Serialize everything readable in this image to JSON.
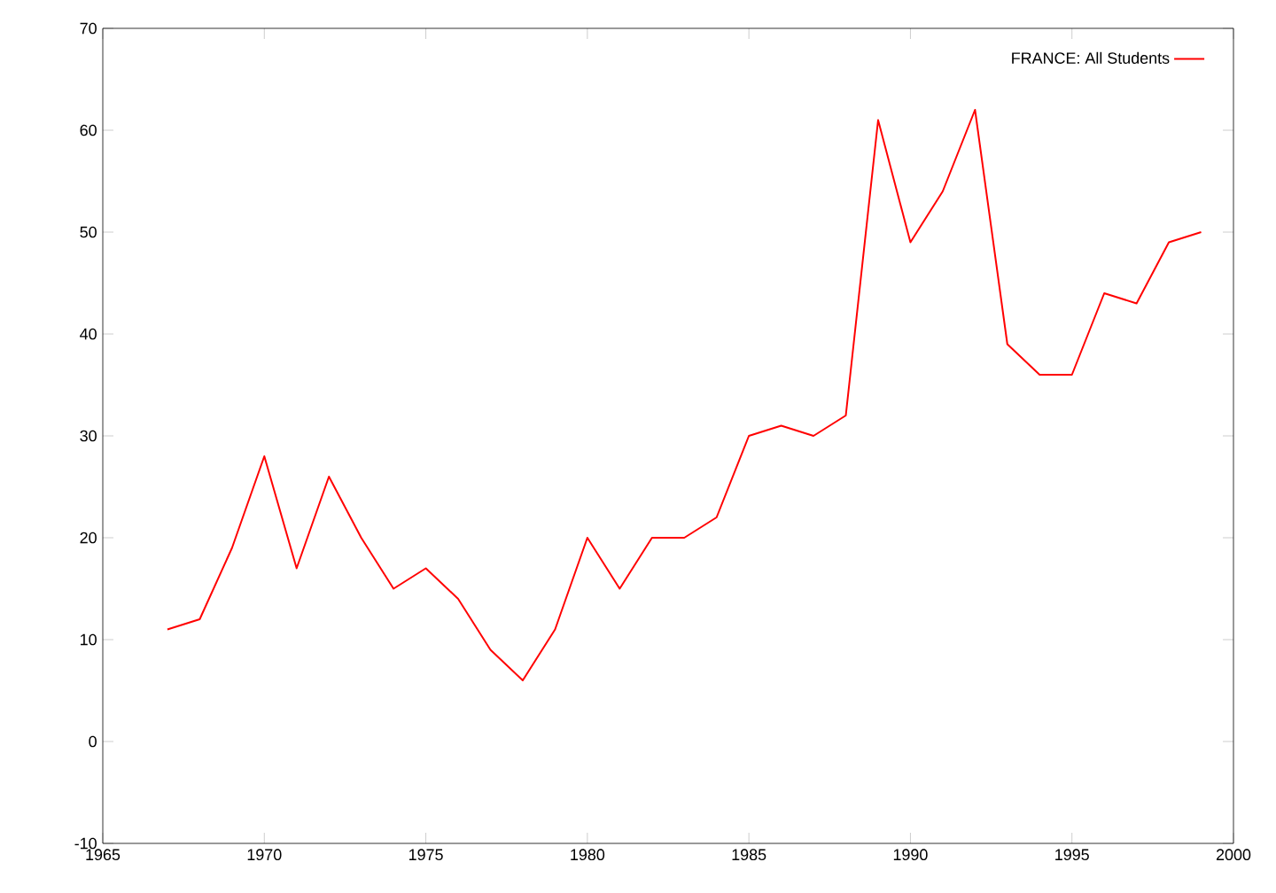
{
  "chart_data": {
    "type": "line",
    "x": [
      1967,
      1968,
      1969,
      1970,
      1971,
      1972,
      1973,
      1974,
      1975,
      1976,
      1977,
      1978,
      1979,
      1980,
      1981,
      1982,
      1983,
      1984,
      1985,
      1986,
      1987,
      1988,
      1989,
      1990,
      1991,
      1992,
      1993,
      1994,
      1995,
      1996,
      1997,
      1998,
      1999
    ],
    "series": [
      {
        "name": "FRANCE: All Students",
        "color": "#ff0000",
        "values": [
          11,
          12,
          19,
          28,
          17,
          26,
          20,
          15,
          17,
          14,
          9,
          6,
          11,
          20,
          15,
          20,
          20,
          22,
          30,
          31,
          30,
          32,
          61,
          49,
          54,
          62,
          39,
          36,
          36,
          44,
          43,
          49,
          50
        ]
      }
    ],
    "xlim": [
      1965,
      2000
    ],
    "ylim": [
      -10,
      70
    ],
    "xticks": [
      1965,
      1970,
      1975,
      1980,
      1985,
      1990,
      1995,
      2000
    ],
    "yticks": [
      -10,
      0,
      10,
      20,
      30,
      40,
      50,
      60,
      70
    ],
    "grid": false,
    "legend": "top right",
    "marker": "none",
    "line_style": "solid"
  }
}
